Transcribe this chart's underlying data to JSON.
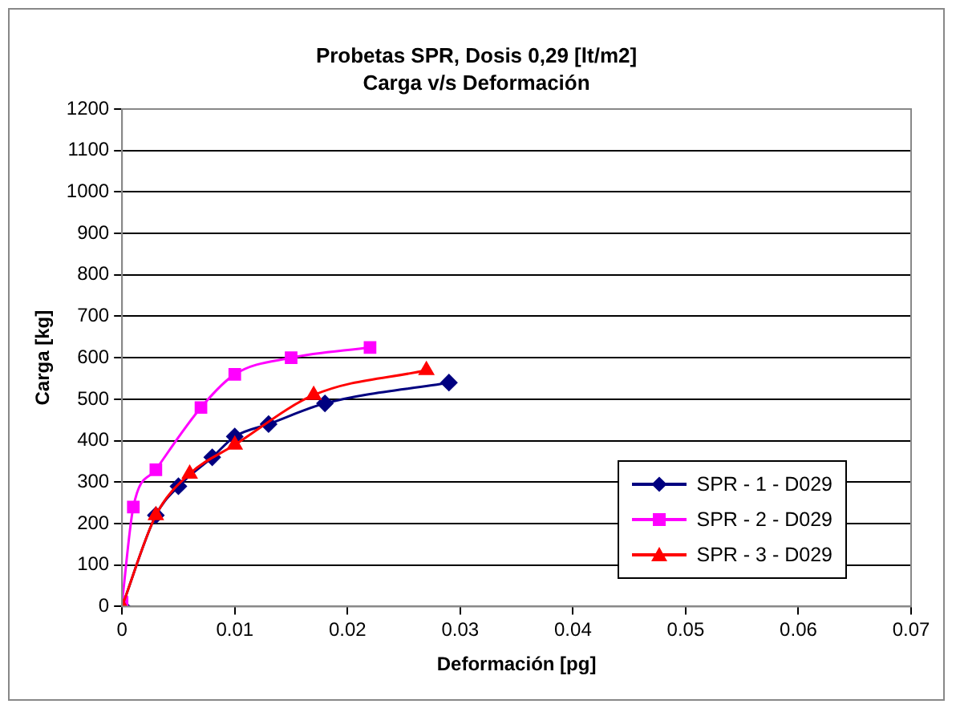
{
  "chart_data": {
    "type": "line",
    "title": "Probetas SPR, Dosis 0,29 [lt/m2]",
    "subtitle": "Carga v/s Deformación",
    "xlabel": "Deformación [pg]",
    "ylabel": "Carga [kg]",
    "xlim": [
      0,
      0.07
    ],
    "xticks": [
      0,
      0.01,
      0.02,
      0.03,
      0.04,
      0.05,
      0.06,
      0.07
    ],
    "ylim": [
      0,
      1200
    ],
    "yticks": [
      0,
      100,
      200,
      300,
      400,
      500,
      600,
      700,
      800,
      900,
      1000,
      1100,
      1200
    ],
    "grid": "y",
    "legend": "bottom right",
    "line_style": "solid",
    "series": [
      {
        "name": "SPR - 1 - D029",
        "color": "#000080",
        "marker": "diamond",
        "x": [
          0,
          0.003,
          0.005,
          0.008,
          0.01,
          0.013,
          0.018,
          0.029
        ],
        "values": [
          0,
          220,
          290,
          360,
          410,
          440,
          490,
          540
        ]
      },
      {
        "name": "SPR - 2 - D029",
        "color": "#ff00ff",
        "marker": "square",
        "x": [
          0,
          0.001,
          0.003,
          0.007,
          0.01,
          0.015,
          0.022
        ],
        "values": [
          10,
          240,
          330,
          480,
          560,
          600,
          625
        ]
      },
      {
        "name": "SPR - 3 - D029",
        "color": "#ff0000",
        "marker": "triangle",
        "x": [
          0,
          0.003,
          0.006,
          0.01,
          0.017,
          0.027
        ],
        "values": [
          0,
          220,
          320,
          390,
          510,
          570
        ]
      }
    ]
  }
}
